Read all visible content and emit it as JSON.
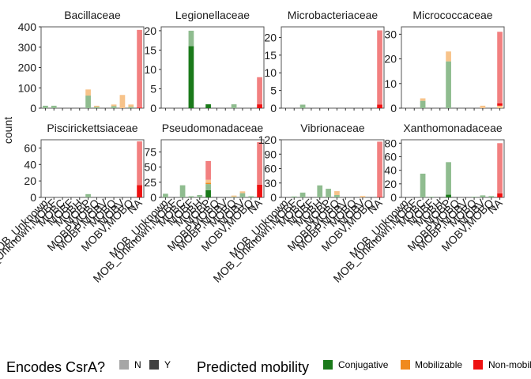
{
  "chart_data": {
    "type": "bar",
    "ylabel": "count",
    "categories": [
      "MOB_Unknown",
      "MOB_Unknown,MOBF",
      "MOBC",
      "MOBF",
      "MOBH",
      "MOBP",
      "MOBP,MOBQ",
      "MOBP,MOBV",
      "MOBQ",
      "MOBV",
      "MOBV,MOBQ",
      "NA"
    ],
    "x_tick_labels": [
      "MOB_Unknown",
      "MOB_Unknown,MOBF",
      "MOBC",
      "MOBF",
      "MOBH",
      "MOBP",
      "MOBP,MOBQ",
      "MOBP,MOBV",
      "MOBQ",
      "MOBV",
      "MOBV,MOBQ",
      "NA"
    ],
    "stack_order": [
      "Conjugative|Y",
      "Conjugative|N",
      "Mobilizable|Y",
      "Mobilizable|N",
      "Non-mobilizable|Y",
      "Non-mobilizable|N"
    ],
    "fill_colors": {
      "Conjugative|Y": "#1a7a1a",
      "Conjugative|N": "#8fbc8f",
      "Mobilizable|Y": "#f08a1e",
      "Mobilizable|N": "#f7c38a",
      "Non-mobilizable|Y": "#ee1111",
      "Non-mobilizable|N": "#f28080"
    },
    "panels": [
      {
        "title": "Bacillaceae",
        "ylim": [
          0,
          400
        ],
        "yticks": [
          0,
          100,
          200,
          300,
          400
        ],
        "bars": [
          {
            "category": "MOB_Unknown",
            "stack": {
              "Conjugative|N": 12
            }
          },
          {
            "category": "MOB_Unknown,MOBF",
            "stack": {
              "Conjugative|N": 12
            }
          },
          {
            "category": "MOBP",
            "stack": {
              "Mobilizable|N": 30,
              "Conjugative|N": 62
            }
          },
          {
            "category": "MOBP,MOBQ",
            "stack": {
              "Mobilizable|N": 6,
              "Conjugative|N": 6
            }
          },
          {
            "category": "MOBQ",
            "stack": {
              "Mobilizable|N": 8,
              "Conjugative|N": 10
            }
          },
          {
            "category": "MOBV",
            "stack": {
              "Mobilizable|N": 65
            }
          },
          {
            "category": "MOBV,MOBQ",
            "stack": {
              "Mobilizable|N": 12,
              "Conjugative|N": 6
            }
          },
          {
            "category": "NA",
            "stack": {
              "Non-mobilizable|Y": 3,
              "Non-mobilizable|N": 382
            }
          }
        ]
      },
      {
        "title": "Legionellaceae",
        "ylim": [
          0,
          21
        ],
        "yticks": [
          0,
          5,
          10,
          15,
          20
        ],
        "bars": [
          {
            "category": "MOBF",
            "stack": {
              "Conjugative|Y": 16,
              "Conjugative|N": 4
            }
          },
          {
            "category": "MOBP",
            "stack": {
              "Conjugative|Y": 1
            }
          },
          {
            "category": "MOBQ",
            "stack": {
              "Conjugative|N": 1
            }
          },
          {
            "category": "NA",
            "stack": {
              "Non-mobilizable|Y": 1,
              "Non-mobilizable|N": 7
            }
          }
        ]
      },
      {
        "title": "Microbacteriaceae",
        "ylim": [
          0,
          23
        ],
        "yticks": [
          0,
          5,
          10,
          15,
          20
        ],
        "bars": [
          {
            "category": "MOBC",
            "stack": {
              "Conjugative|N": 1
            }
          },
          {
            "category": "NA",
            "stack": {
              "Non-mobilizable|Y": 1,
              "Non-mobilizable|N": 21
            }
          }
        ]
      },
      {
        "title": "Micrococcaceae",
        "ylim": [
          0,
          33
        ],
        "yticks": [
          0,
          10,
          20,
          30
        ],
        "bars": [
          {
            "category": "MOBC",
            "stack": {
              "Mobilizable|N": 1,
              "Conjugative|N": 3
            }
          },
          {
            "category": "MOBP",
            "stack": {
              "Mobilizable|N": 4,
              "Conjugative|N": 19
            }
          },
          {
            "category": "MOBV",
            "stack": {
              "Mobilizable|N": 1
            }
          },
          {
            "category": "NA",
            "stack": {
              "Non-mobilizable|Y": 1,
              "Non-mobilizable|N": 29,
              "Mobilizable|N": 1
            }
          }
        ]
      },
      {
        "title": "Piscirickettsiaceae",
        "ylim": [
          0,
          70
        ],
        "yticks": [
          0,
          20,
          40,
          60
        ],
        "bars": [
          {
            "category": "MOBP",
            "stack": {
              "Conjugative|N": 4
            }
          },
          {
            "category": "NA",
            "stack": {
              "Non-mobilizable|Y": 15,
              "Non-mobilizable|N": 53
            }
          }
        ]
      },
      {
        "title": "Pseudomonadaceae",
        "ylim": [
          0,
          95
        ],
        "yticks": [
          0,
          25,
          50,
          75
        ],
        "bars": [
          {
            "category": "MOB_Unknown",
            "stack": {
              "Conjugative|N": 6
            }
          },
          {
            "category": "MOBC",
            "stack": {
              "Conjugative|N": 20
            }
          },
          {
            "category": "MOBF",
            "stack": {
              "Conjugative|N": 2
            }
          },
          {
            "category": "MOBH",
            "stack": {
              "Conjugative|N": 4
            }
          },
          {
            "category": "MOBP",
            "stack": {
              "Conjugative|Y": 12,
              "Conjugative|N": 10,
              "Mobilizable|Y": 2,
              "Mobilizable|N": 5,
              "Non-mobilizable|N": 31
            }
          },
          {
            "category": "MOBQ",
            "stack": {
              "Mobilizable|N": 2,
              "Conjugative|N": 1
            }
          },
          {
            "category": "MOBV",
            "stack": {
              "Mobilizable|N": 3,
              "Conjugative|N": 7
            }
          },
          {
            "category": "MOBV,MOBQ",
            "stack": {
              "Conjugative|N": 2
            }
          },
          {
            "category": "NA",
            "stack": {
              "Non-mobilizable|Y": 21,
              "Non-mobilizable|N": 70
            }
          }
        ]
      },
      {
        "title": "Vibrionaceae",
        "ylim": [
          0,
          120
        ],
        "yticks": [
          0,
          30,
          60,
          90,
          120
        ],
        "bars": [
          {
            "category": "MOB_Unknown,MOBF",
            "stack": {
              "Conjugative|N": 2
            }
          },
          {
            "category": "MOBC",
            "stack": {
              "Conjugative|N": 10
            }
          },
          {
            "category": "MOBH",
            "stack": {
              "Conjugative|N": 25
            }
          },
          {
            "category": "MOBP",
            "stack": {
              "Conjugative|N": 18
            }
          },
          {
            "category": "MOBP,MOBQ",
            "stack": {
              "Mobilizable|N": 8,
              "Conjugative|N": 5
            }
          },
          {
            "category": "MOBV",
            "stack": {
              "Mobilizable|N": 3
            }
          },
          {
            "category": "NA",
            "stack": {
              "Non-mobilizable|Y": 1,
              "Non-mobilizable|N": 115
            }
          }
        ]
      },
      {
        "title": "Xanthomonadaceae",
        "ylim": [
          0,
          85
        ],
        "yticks": [
          0,
          20,
          40,
          60,
          80
        ],
        "bars": [
          {
            "category": "MOBC",
            "stack": {
              "Conjugative|N": 35
            }
          },
          {
            "category": "MOBF",
            "stack": {
              "Conjugative|N": 1
            }
          },
          {
            "category": "MOBP",
            "stack": {
              "Conjugative|Y": 4,
              "Conjugative|N": 48
            }
          },
          {
            "category": "MOBQ",
            "stack": {
              "Conjugative|N": 1
            }
          },
          {
            "category": "MOBV",
            "stack": {
              "Conjugative|N": 3
            }
          },
          {
            "category": "MOBV,MOBQ",
            "stack": {
              "Conjugative|N": 2
            }
          },
          {
            "category": "NA",
            "stack": {
              "Non-mobilizable|Y": 6,
              "Non-mobilizable|N": 74
            }
          }
        ]
      }
    ]
  },
  "legend": {
    "csra_title": "Encodes CsrA?",
    "csra_items": [
      {
        "label": "N",
        "color": "#a6a6a6"
      },
      {
        "label": "Y",
        "color": "#404040"
      }
    ],
    "mobility_title": "Predicted mobility",
    "mobility_items": [
      {
        "label": "Conjugative",
        "color": "#1a7a1a"
      },
      {
        "label": "Mobilizable",
        "color": "#f08a1e"
      },
      {
        "label": "Non-mobilizable",
        "color": "#ee1111"
      }
    ]
  }
}
